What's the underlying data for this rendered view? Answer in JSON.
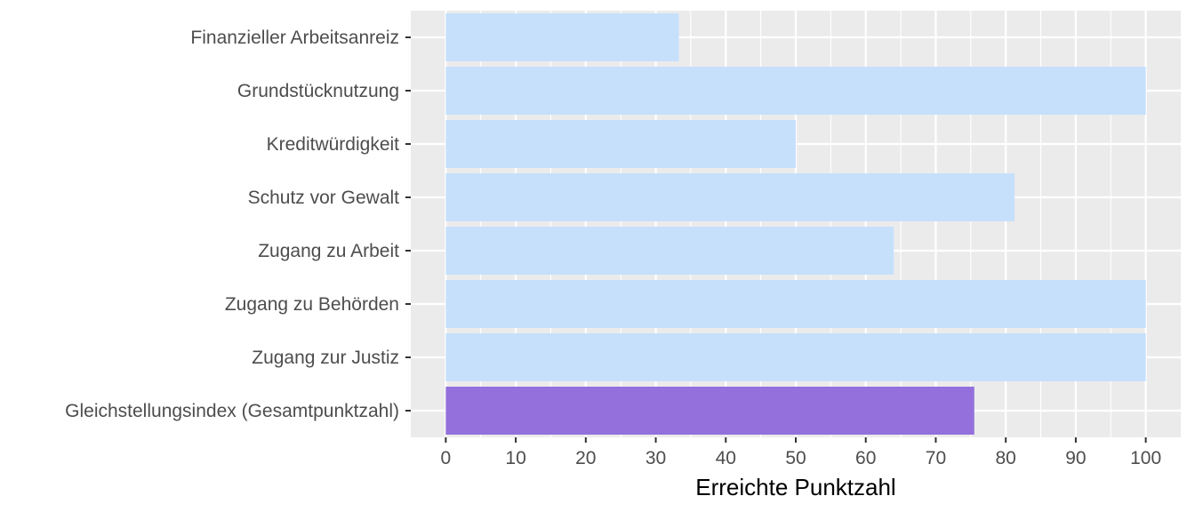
{
  "chart_data": {
    "type": "bar",
    "orientation": "horizontal",
    "categories": [
      "Finanzieller Arbeitsanreiz",
      "Grundstücknutzung",
      "Kreditwürdigkeit",
      "Schutz vor Gewalt",
      "Zugang zu Arbeit",
      "Zugang zu Behörden",
      "Zugang zur Justiz",
      "Gleichstellungsindex (Gesamtpunktzahl)"
    ],
    "values": [
      33.3,
      100,
      50,
      81.25,
      64,
      100,
      100,
      75.5
    ],
    "highlight_category": "Gleichstellungsindex (Gesamtpunktzahl)",
    "xlabel": "Erreichte Punktzahl",
    "ylabel": "",
    "xlim": [
      -5,
      105
    ],
    "xticks": [
      "0",
      "10",
      "20",
      "30",
      "40",
      "50",
      "60",
      "70",
      "80",
      "90",
      "100"
    ],
    "grid": true,
    "colors": {
      "bar": "#c6e0fc",
      "highlight": "#9370db",
      "panel": "#ebebeb",
      "grid": "#ffffff"
    }
  }
}
